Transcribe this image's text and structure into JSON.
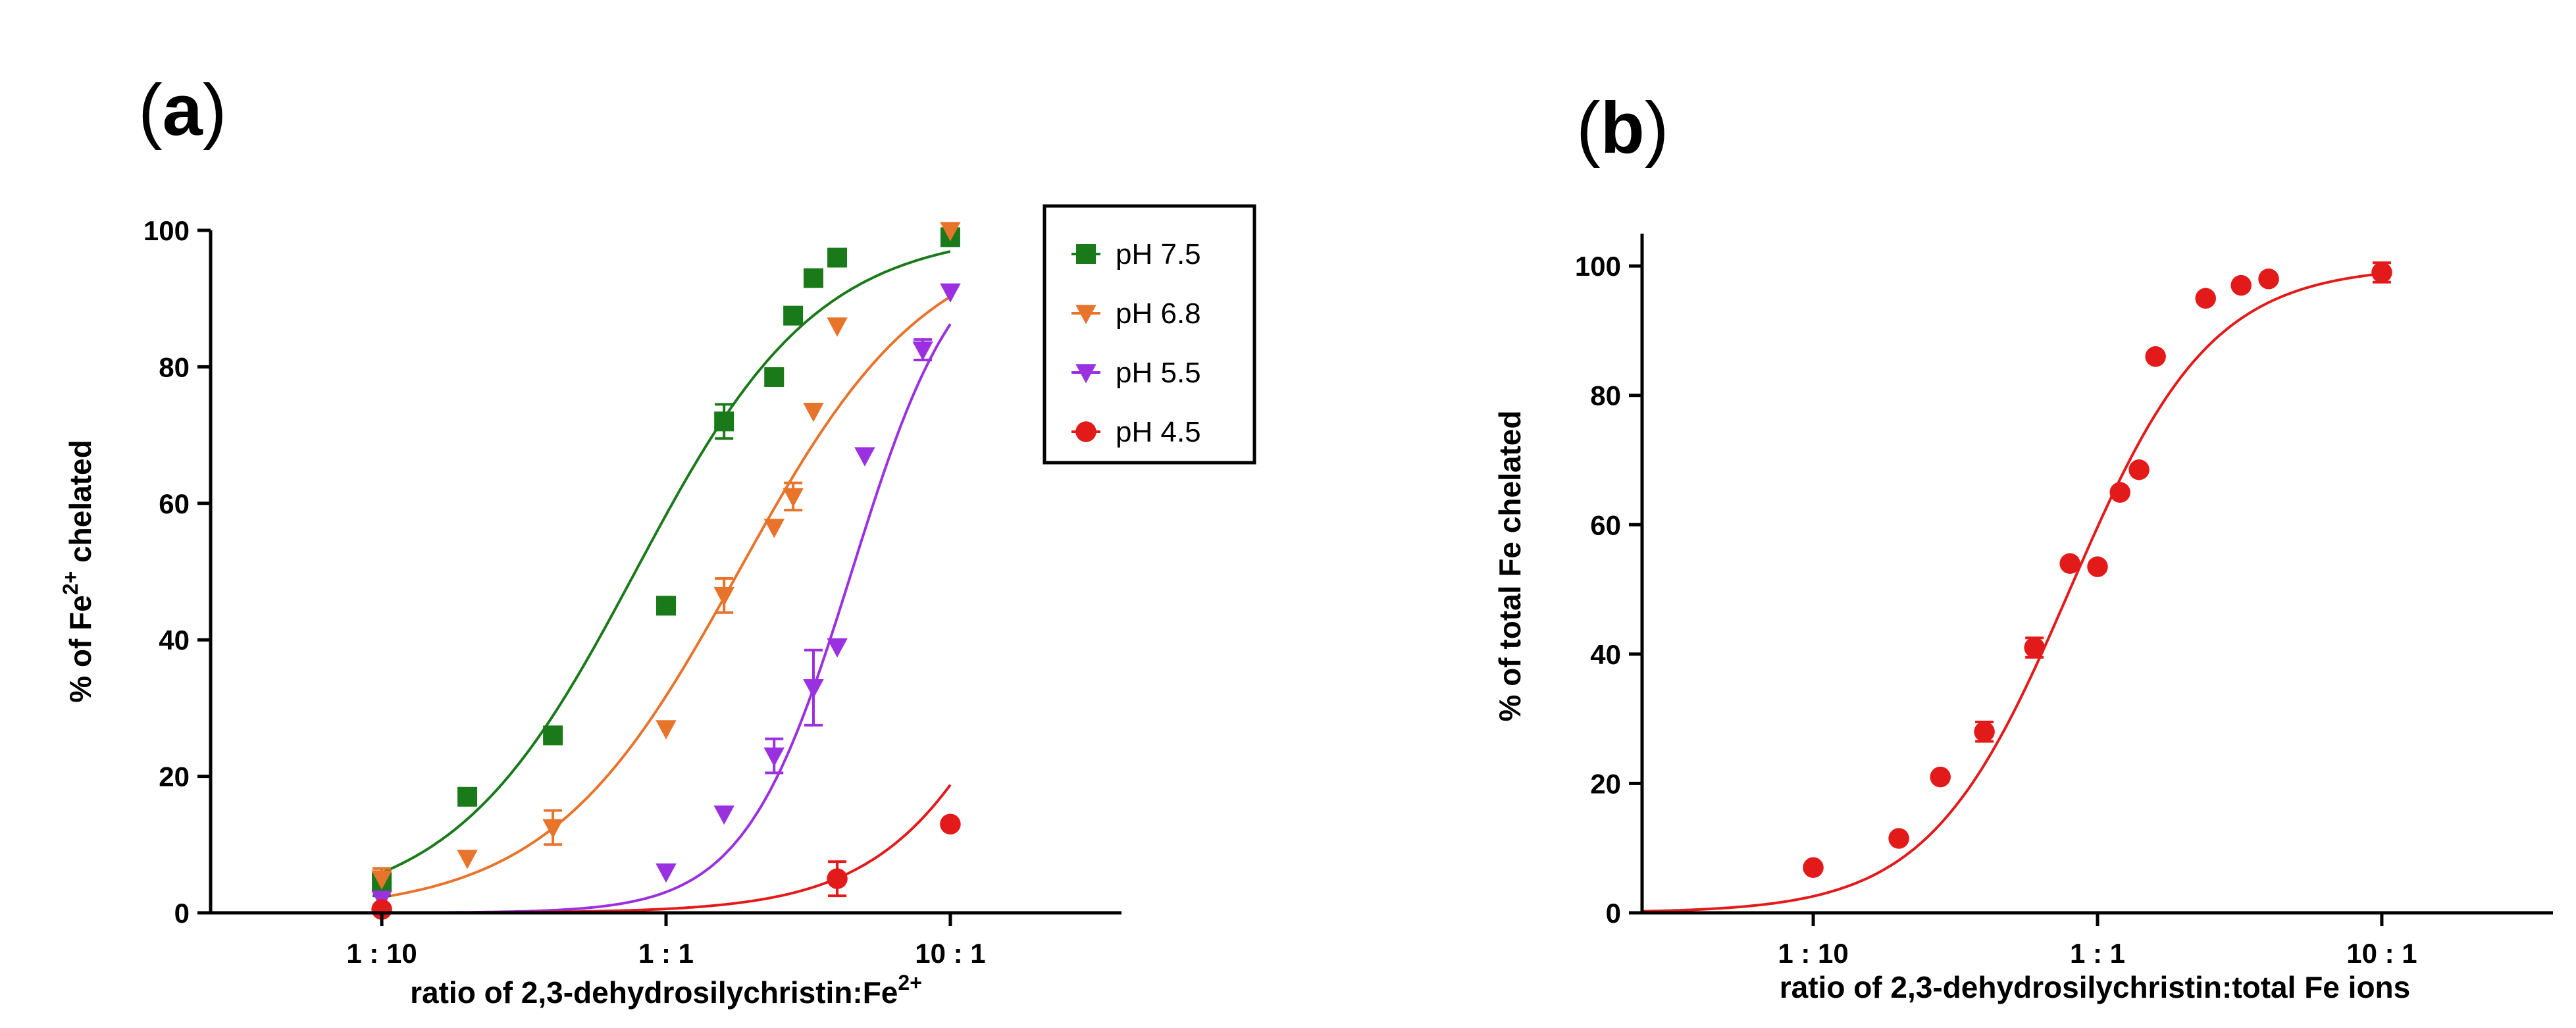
{
  "figure": {
    "panel_a_paren_open": "(",
    "panel_a_letter": "a",
    "panel_a_paren_close": ")",
    "panel_b_paren_open": "(",
    "panel_b_letter": "b",
    "panel_b_paren_close": ")"
  },
  "chart_data": [
    {
      "type": "scatter",
      "panel": "a",
      "xscale": "log",
      "xlim": [
        0.025,
        40
      ],
      "ylim": [
        0,
        100
      ],
      "xticks": [
        {
          "value": 0.1,
          "label": "1 : 10"
        },
        {
          "value": 1,
          "label": "1 : 1"
        },
        {
          "value": 10,
          "label": "10 : 1"
        }
      ],
      "yticks": [
        0,
        20,
        40,
        60,
        80,
        100
      ],
      "xlabel": "ratio of 2,3-dehydrosilychristin:Fe",
      "xlabel_sup": "2+",
      "ylabel_prefix": "% of Fe",
      "ylabel_sup": "2+",
      "ylabel_suffix": " chelated",
      "legend_position": "top-right",
      "series": [
        {
          "name": "pH 7.5",
          "color": "#1a7a1a",
          "marker": "square",
          "fit": {
            "bottom": 0,
            "top": 100,
            "ec50": 0.78,
            "hill": 1.35
          },
          "x": [
            0.1,
            0.2,
            0.4,
            1.0,
            1.6,
            2.4,
            2.8,
            3.3,
            4.0,
            10
          ],
          "y": [
            4.5,
            17,
            26,
            45,
            72,
            78.5,
            87.5,
            93,
            96,
            99
          ],
          "err": [
            2,
            0,
            0,
            0,
            2.5,
            0,
            0,
            0,
            0,
            0
          ]
        },
        {
          "name": "pH 6.8",
          "color": "#e8732a",
          "marker": "triangle-down",
          "fit": {
            "bottom": 0,
            "top": 100,
            "ec50": 1.8,
            "hill": 1.3
          },
          "x": [
            0.1,
            0.2,
            0.4,
            1.0,
            1.6,
            2.4,
            2.8,
            3.3,
            4.0,
            10
          ],
          "y": [
            5,
            8,
            12.5,
            27,
            46.5,
            56.5,
            61,
            73.5,
            86,
            100
          ],
          "err": [
            1.5,
            0,
            2.5,
            0,
            2.5,
            0,
            2,
            0,
            0,
            0
          ]
        },
        {
          "name": "pH 5.5",
          "color": "#9b30e0",
          "marker": "triangle-down",
          "fit": {
            "bottom": 0,
            "top": 100,
            "ec50": 4.5,
            "hill": 2.3
          },
          "x": [
            0.1,
            1.0,
            1.6,
            2.4,
            3.3,
            4.0,
            5.0,
            8.0,
            10
          ],
          "y": [
            2,
            6,
            14.5,
            23,
            33,
            39,
            67,
            82.5,
            91
          ],
          "err": [
            0,
            0,
            0,
            2.5,
            5.5,
            0,
            0,
            1.5,
            0
          ]
        },
        {
          "name": "pH 4.5",
          "color": "#e31a1a",
          "marker": "circle",
          "fit": {
            "bottom": 0,
            "top": 100,
            "ec50": 25,
            "hill": 1.6
          },
          "x": [
            0.1,
            4.0,
            10
          ],
          "y": [
            0.5,
            5,
            13
          ],
          "err": [
            0,
            2.5,
            0
          ]
        }
      ]
    },
    {
      "type": "scatter",
      "panel": "b",
      "xscale": "log",
      "xlim": [
        0.025,
        40
      ],
      "ylim": [
        0,
        105
      ],
      "xticks": [
        {
          "value": 0.1,
          "label": "1 : 10"
        },
        {
          "value": 1,
          "label": "1 : 1"
        },
        {
          "value": 10,
          "label": "10 : 1"
        }
      ],
      "yticks": [
        0,
        20,
        40,
        60,
        80,
        100
      ],
      "xlabel": "ratio of 2,3-dehydrosilychristin:total Fe ions",
      "ylabel": "% of total Fe chelated",
      "series": [
        {
          "color": "#e31a1a",
          "marker": "circle",
          "fit": {
            "bottom": 0,
            "top": 100,
            "ec50": 0.8,
            "hill": 1.75
          },
          "x": [
            0.1,
            0.2,
            0.28,
            0.4,
            0.6,
            0.8,
            1.0,
            1.2,
            1.4,
            1.6,
            2.4,
            3.2,
            4.0,
            10
          ],
          "y": [
            7,
            11.5,
            21,
            28,
            41,
            54,
            53.5,
            65,
            68.5,
            86,
            95,
            97,
            98,
            99
          ],
          "err": [
            0,
            0,
            0,
            1.5,
            1.5,
            0,
            0,
            0,
            0,
            0,
            0,
            0,
            0,
            1.5
          ]
        }
      ]
    }
  ]
}
